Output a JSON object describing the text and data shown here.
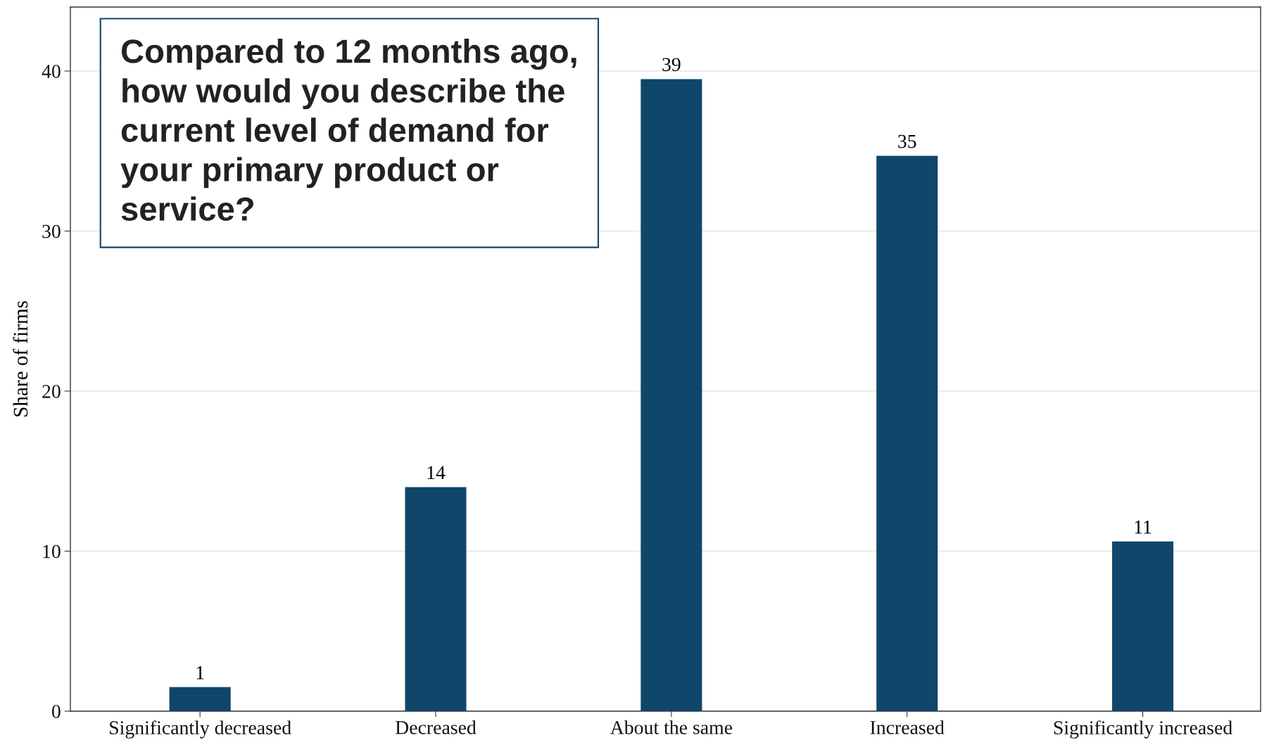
{
  "chart_data": {
    "type": "bar",
    "title": "Compared to 12 months ago, how would you describe the current level of demand for your primary product or service?",
    "ylabel": "Share of firms",
    "categories": [
      "Significantly decreased",
      "Decreased",
      "About the same",
      "Increased",
      "Significantly increased"
    ],
    "values": [
      1.5,
      14.0,
      39.5,
      34.7,
      10.6
    ],
    "value_labels": [
      "1",
      "14",
      "39",
      "35",
      "11"
    ],
    "color": "#10466a",
    "ylim": [
      0,
      44
    ],
    "yticks": [
      0,
      10,
      20,
      30,
      40
    ],
    "grid": "y",
    "legend": false
  }
}
